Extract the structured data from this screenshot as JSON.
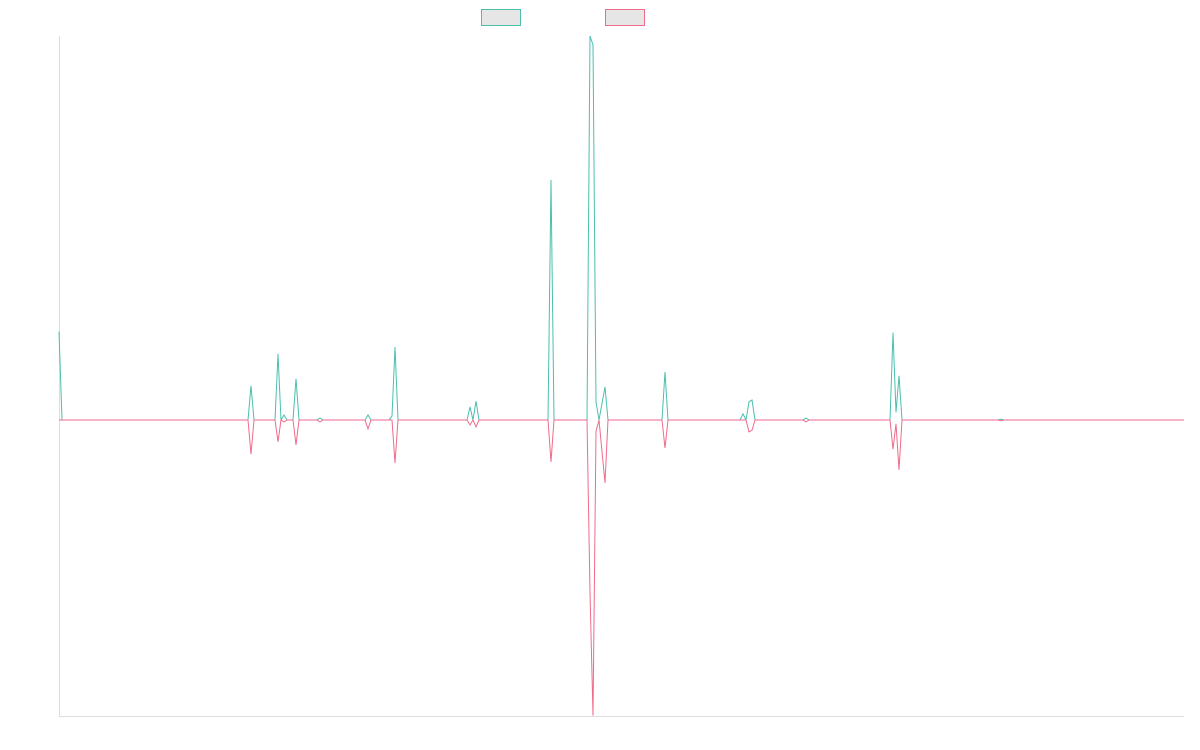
{
  "chart_data": {
    "type": "line",
    "x": [
      0,
      1,
      63,
      64,
      65,
      72,
      73,
      74,
      75,
      76,
      78,
      79,
      80,
      86,
      87,
      88,
      102,
      103,
      104,
      110,
      111,
      112,
      113,
      136,
      137,
      138,
      139,
      140,
      163,
      164,
      165,
      176,
      177,
      178,
      179,
      180,
      182,
      183,
      201,
      202,
      203,
      227,
      228,
      229,
      230,
      231,
      232,
      248,
      249,
      250,
      277,
      278,
      279,
      280,
      281,
      313,
      314,
      315,
      375
    ],
    "series": [
      {
        "color": "#4bbfae",
        "values": [
          23,
          0,
          0,
          8.9,
          0,
          0,
          17.2,
          0,
          1.3,
          0,
          0,
          10.7,
          0,
          0,
          0.5,
          0,
          0,
          1.3,
          0,
          0,
          1,
          19,
          0,
          0,
          3.4,
          0,
          4.9,
          0,
          0,
          62.5,
          0,
          0,
          100,
          97.7,
          4.7,
          0,
          8.6,
          0,
          0,
          12.5,
          0,
          0,
          1.6,
          0,
          4.7,
          5.2,
          0,
          0,
          0.5,
          0,
          0,
          22.7,
          2,
          11.5,
          0,
          0,
          0.2,
          0,
          0
        ]
      },
      {
        "color": "#f06a8c",
        "values": [
          0,
          0,
          0,
          -8.9,
          0,
          0,
          -5.7,
          0,
          -0.5,
          0,
          0,
          -6.5,
          0,
          0,
          -0.5,
          0,
          0,
          -2.3,
          0,
          0,
          0,
          -11.2,
          0,
          0,
          -1.3,
          0,
          -1.8,
          0,
          0,
          -10.9,
          0,
          0,
          -45,
          -77,
          -3,
          0,
          -16.4,
          0,
          0,
          -7.3,
          0,
          0,
          0,
          0,
          -3.1,
          -2.7,
          0,
          0,
          -0.5,
          0,
          0,
          -7.6,
          -1,
          -13,
          0,
          0,
          -0.2,
          0,
          0
        ]
      }
    ],
    "xlim": [
      0,
      375
    ],
    "ylim": [
      -77.1,
      100
    ]
  }
}
